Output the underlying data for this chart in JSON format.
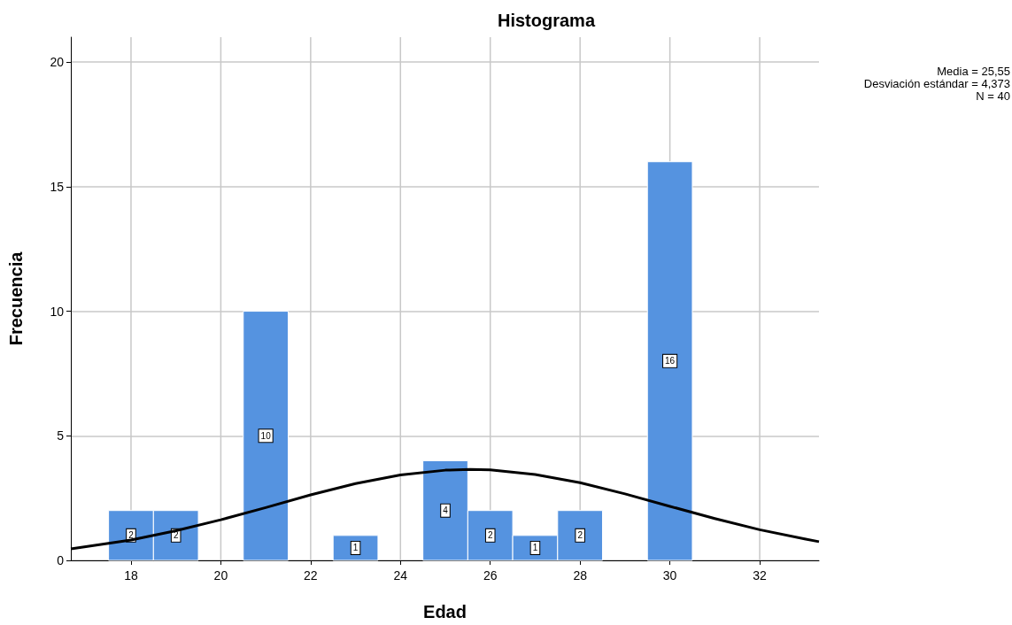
{
  "chart_data": {
    "type": "histogram",
    "title": "Histograma",
    "xlabel": "Edad",
    "ylabel": "Frecuencia",
    "annotations": [
      "Media = 25,55",
      "Desviación estándar = 4,373",
      "N = 40"
    ],
    "bins": [
      17.5,
      18.5,
      19.5,
      20.5,
      21.5,
      22.5,
      23.5,
      24.5,
      25.5,
      26.5,
      27.5,
      28.5,
      29.5,
      30.5
    ],
    "values": [
      2,
      2,
      0,
      10,
      0,
      1,
      0,
      4,
      2,
      1,
      2,
      0,
      16
    ],
    "color": "#5593e0",
    "value_labels": [
      "2",
      "2",
      null,
      "10",
      null,
      "1",
      null,
      "4",
      "2",
      "1",
      "2",
      null,
      "16"
    ],
    "series": [
      {
        "type": "line",
        "color": "#000000",
        "marker": "none",
        "x": [
          16.66,
          18,
          19,
          20,
          21,
          22,
          23,
          24,
          25,
          25.55,
          26,
          27,
          28,
          29,
          30,
          31,
          32,
          33,
          33.32
        ],
        "values": [
          0.46,
          0.82,
          1.19,
          1.63,
          2.12,
          2.63,
          3.08,
          3.43,
          3.62,
          3.65,
          3.63,
          3.45,
          3.12,
          2.67,
          2.17,
          1.68,
          1.23,
          0.86,
          0.75
        ]
      }
    ],
    "xlim": [
      16.66,
      33.32
    ],
    "xticks": [
      18,
      20,
      22,
      24,
      26,
      28,
      30,
      32
    ],
    "ylim": [
      0,
      21
    ],
    "yticks": [
      0,
      5,
      10,
      15,
      20
    ],
    "grid": true
  }
}
